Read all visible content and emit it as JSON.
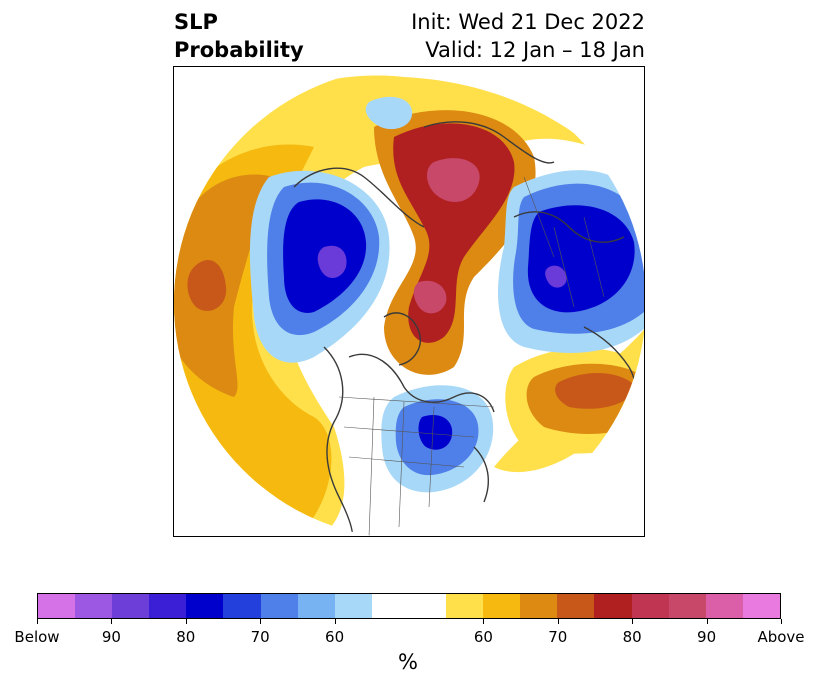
{
  "title": {
    "left_line1": "SLP",
    "left_line2": "Probability",
    "right_line1": "Init: Wed 21 Dec 2022",
    "right_line2": "Valid: 12 Jan – 18 Jan"
  },
  "map": {
    "projection_icon": "polar-stereographic-map",
    "colors": {
      "below_60": "#a8d8f8",
      "below_70": "#4f7fe8",
      "below_80": "#0000cc",
      "below_90": "#6a3bd8",
      "above_60": "#ffe04a",
      "above_65": "#f5b90f",
      "above_70": "#dc8a12",
      "above_75": "#c8581a",
      "above_80": "#b02020",
      "above_90": "#c8486a"
    }
  },
  "colorbar": {
    "colors": [
      "#d672e8",
      "#9c58e2",
      "#6e3ed8",
      "#3a1fd6",
      "#0000cc",
      "#2340dc",
      "#4f7fe8",
      "#77b2f2",
      "#a8d8f8",
      "#ffffff",
      "#ffffff",
      "#ffe04a",
      "#f5b90f",
      "#dc8a12",
      "#c8581a",
      "#b02020",
      "#c03652",
      "#c8486a",
      "#db5fa8",
      "#e87ae0"
    ],
    "ticks": [
      "Below",
      "90",
      "80",
      "70",
      "60",
      "60",
      "70",
      "80",
      "90",
      "Above"
    ],
    "label": "%"
  }
}
